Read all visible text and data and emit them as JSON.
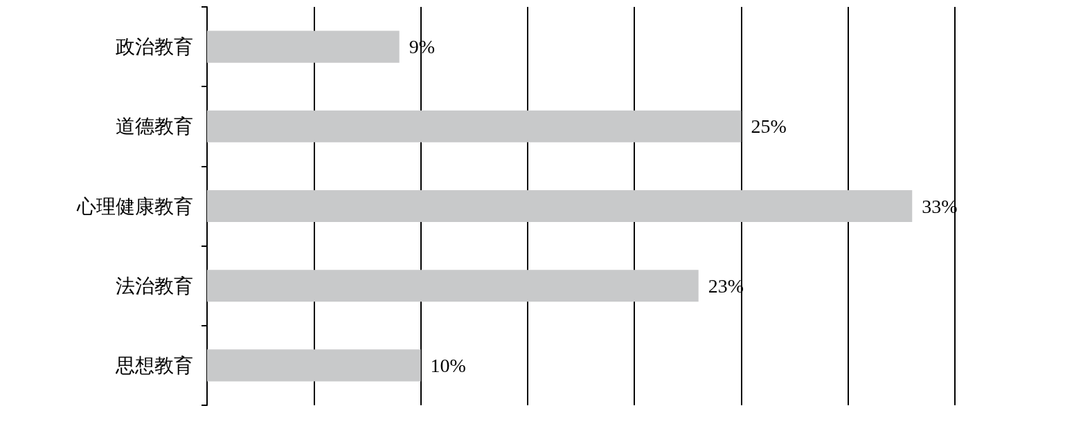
{
  "chart_data": {
    "type": "bar",
    "orientation": "horizontal",
    "categories": [
      "政治教育",
      "道德教育",
      "心理健康教育",
      "法治教育",
      "思想教育"
    ],
    "values": [
      9,
      25,
      33,
      23,
      10
    ],
    "value_labels": [
      "9%",
      "25%",
      "33%",
      "23%",
      "10%"
    ],
    "color": "#c8c9ca",
    "xlim": [
      0,
      35
    ],
    "xticks": [
      {
        "value": 0,
        "label": null
      },
      {
        "value": 5,
        "label": null
      },
      {
        "value": 10,
        "label": null
      },
      {
        "value": 15,
        "label": null
      },
      {
        "value": 20,
        "label": null
      },
      {
        "value": 25,
        "label": null
      },
      {
        "value": 30,
        "label": null
      },
      {
        "value": 35,
        "label": null
      }
    ],
    "grid": "x",
    "tick_labels": "y"
  }
}
